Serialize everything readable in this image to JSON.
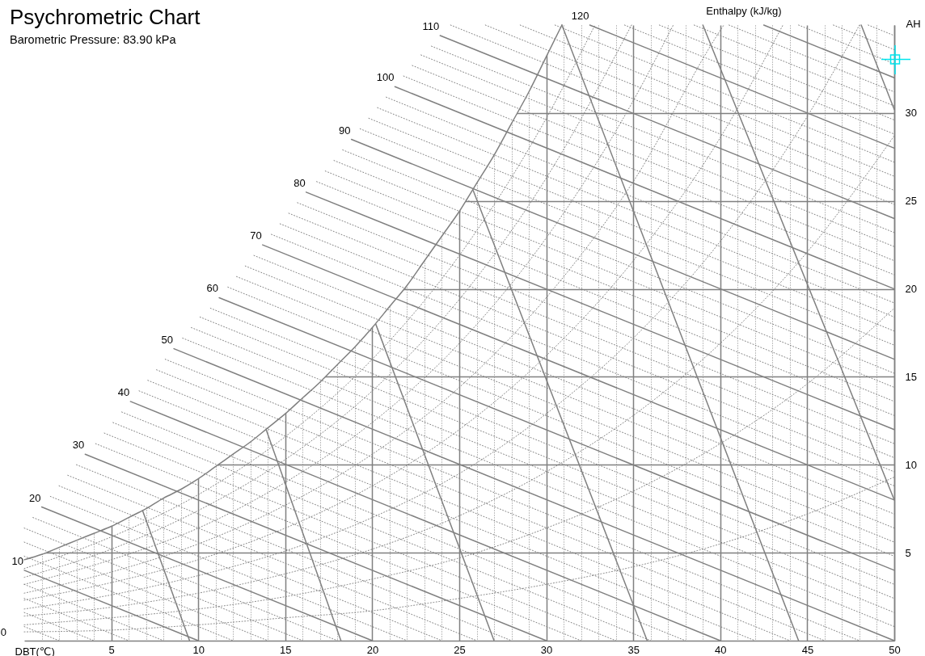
{
  "chart_data": {
    "type": "line",
    "title": "Psychrometric Chart",
    "subtitle": "Barometric Pressure: 83.90 kPa",
    "xlabel": "DBT(℃)",
    "ylabel": "AH",
    "annotations": [
      "Enthalpy (kJ/kg)",
      "0"
    ],
    "xlim": [
      0,
      50
    ],
    "ylim": [
      0,
      35
    ],
    "xticks": [
      {
        "value": 1,
        "label": null
      },
      {
        "value": 2,
        "label": null
      },
      {
        "value": 3,
        "label": null
      },
      {
        "value": 4,
        "label": null
      },
      5,
      {
        "value": 6,
        "label": null
      },
      {
        "value": 7,
        "label": null
      },
      {
        "value": 8,
        "label": null
      },
      {
        "value": 9,
        "label": null
      },
      10,
      {
        "value": 11,
        "label": null
      },
      {
        "value": 12,
        "label": null
      },
      {
        "value": 13,
        "label": null
      },
      {
        "value": 14,
        "label": null
      },
      15,
      {
        "value": 16,
        "label": null
      },
      {
        "value": 17,
        "label": null
      },
      {
        "value": 18,
        "label": null
      },
      {
        "value": 19,
        "label": null
      },
      20,
      {
        "value": 21,
        "label": null
      },
      {
        "value": 22,
        "label": null
      },
      {
        "value": 23,
        "label": null
      },
      {
        "value": 24,
        "label": null
      },
      25,
      {
        "value": 26,
        "label": null
      },
      {
        "value": 27,
        "label": null
      },
      {
        "value": 28,
        "label": null
      },
      {
        "value": 29,
        "label": null
      },
      30,
      {
        "value": 31,
        "label": null
      },
      {
        "value": 32,
        "label": null
      },
      {
        "value": 33,
        "label": null
      },
      {
        "value": 34,
        "label": null
      },
      35,
      {
        "value": 36,
        "label": null
      },
      {
        "value": 37,
        "label": null
      },
      {
        "value": 38,
        "label": null
      },
      {
        "value": 39,
        "label": null
      },
      40,
      {
        "value": 41,
        "label": null
      },
      {
        "value": 42,
        "label": null
      },
      {
        "value": 43,
        "label": null
      },
      {
        "value": 44,
        "label": null
      },
      45,
      {
        "value": 46,
        "label": null
      },
      {
        "value": 47,
        "label": null
      },
      {
        "value": 48,
        "label": null
      },
      {
        "value": 49,
        "label": null
      },
      50
    ],
    "yticks": [
      5,
      10,
      15,
      20,
      25,
      30
    ],
    "grid": true,
    "line_style": "solid",
    "series": [
      {
        "color": "#808080",
        "line_style": "dotted",
        "x": [
          0,
          2
        ],
        "values": [
          0.8,
          0
        ]
      },
      {
        "color": "#808080",
        "line_style": "dotted",
        "x": [
          0,
          4
        ],
        "values": [
          1.6,
          0
        ]
      },
      {
        "color": "#808080",
        "line_style": "dotted",
        "x": [
          0,
          6
        ],
        "values": [
          2.4,
          0
        ]
      },
      {
        "color": "#808080",
        "line_style": "dotted",
        "x": [
          0,
          8
        ],
        "values": [
          3.2,
          0
        ]
      },
      {
        "color": "#808080",
        "line_style": "dotted",
        "x": [
          0,
          12
        ],
        "values": [
          4.8,
          0
        ]
      },
      {
        "color": "#808080",
        "line_style": "dotted",
        "x": [
          0,
          14
        ],
        "values": [
          5.6,
          0
        ]
      },
      {
        "color": "#808080",
        "line_style": "dotted",
        "x": [
          0,
          16
        ],
        "values": [
          6.4,
          0
        ]
      },
      {
        "color": "#808080",
        "line_style": "dotted",
        "x": [
          0.5,
          18
        ],
        "values": [
          7.0,
          0
        ]
      },
      {
        "color": "#808080",
        "line_style": "dotted",
        "x": [
          1.5,
          22
        ],
        "values": [
          8.2,
          0
        ]
      },
      {
        "color": "#808080",
        "line_style": "dotted",
        "x": [
          2.0,
          24
        ],
        "values": [
          8.8,
          0
        ]
      },
      {
        "color": "#808080",
        "line_style": "dotted",
        "x": [
          2.5,
          26
        ],
        "values": [
          9.4,
          0
        ]
      },
      {
        "color": "#808080",
        "line_style": "dotted",
        "x": [
          3.0,
          28
        ],
        "values": [
          10.0,
          0
        ]
      },
      {
        "color": "#808080",
        "line_style": "dotted",
        "x": [
          4.1,
          32
        ],
        "values": [
          11.2,
          0
        ]
      },
      {
        "color": "#808080",
        "line_style": "dotted",
        "x": [
          4.6,
          34
        ],
        "values": [
          11.8,
          0
        ]
      },
      {
        "color": "#808080",
        "line_style": "dotted",
        "x": [
          5.1,
          36
        ],
        "values": [
          12.4,
          0
        ]
      },
      {
        "color": "#808080",
        "line_style": "dotted",
        "x": [
          5.6,
          38
        ],
        "values": [
          13.0,
          0
        ]
      },
      {
        "color": "#808080",
        "line_style": "dotted",
        "x": [
          6.6,
          42
        ],
        "values": [
          14.2,
          0
        ]
      },
      {
        "color": "#808080",
        "line_style": "dotted",
        "x": [
          7.1,
          44
        ],
        "values": [
          14.8,
          0
        ]
      },
      {
        "color": "#808080",
        "line_style": "dotted",
        "x": [
          7.6,
          46
        ],
        "values": [
          15.4,
          0
        ]
      },
      {
        "color": "#808080",
        "line_style": "dotted",
        "x": [
          8.1,
          48
        ],
        "values": [
          16.0,
          0
        ]
      },
      {
        "color": "#808080",
        "line_style": "dotted",
        "x": [
          9.1,
          50
        ],
        "values": [
          17.2,
          0.8
        ]
      },
      {
        "color": "#808080",
        "line_style": "dotted",
        "x": [
          9.6,
          50
        ],
        "values": [
          17.8,
          1.6
        ]
      },
      {
        "color": "#808080",
        "line_style": "dotted",
        "x": [
          10.1,
          50
        ],
        "values": [
          18.4,
          2.4
        ]
      },
      {
        "color": "#808080",
        "line_style": "dotted",
        "x": [
          10.7,
          50
        ],
        "values": [
          18.9,
          3.2
        ]
      },
      {
        "color": "#808080",
        "line_style": "dotted",
        "x": [
          11.7,
          50
        ],
        "values": [
          20.1,
          4.8
        ]
      },
      {
        "color": "#808080",
        "line_style": "dotted",
        "x": [
          12.2,
          50
        ],
        "values": [
          20.7,
          5.6
        ]
      },
      {
        "color": "#808080",
        "line_style": "dotted",
        "x": [
          12.7,
          50
        ],
        "values": [
          21.3,
          6.4
        ]
      },
      {
        "color": "#808080",
        "line_style": "dotted",
        "x": [
          13.2,
          50
        ],
        "values": [
          21.9,
          7.2
        ]
      },
      {
        "color": "#808080",
        "line_style": "dotted",
        "x": [
          14.2,
          50
        ],
        "values": [
          23.1,
          8.8
        ]
      },
      {
        "color": "#808080",
        "line_style": "dotted",
        "x": [
          14.7,
          50
        ],
        "values": [
          23.7,
          9.6
        ]
      },
      {
        "color": "#808080",
        "line_style": "dotted",
        "x": [
          15.2,
          50
        ],
        "values": [
          24.3,
          10.4
        ]
      },
      {
        "color": "#808080",
        "line_style": "dotted",
        "x": [
          15.7,
          50
        ],
        "values": [
          24.9,
          11.2
        ]
      },
      {
        "color": "#808080",
        "line_style": "dotted",
        "x": [
          16.8,
          50
        ],
        "values": [
          26.1,
          12.8
        ]
      },
      {
        "color": "#808080",
        "line_style": "dotted",
        "x": [
          17.3,
          50
        ],
        "values": [
          26.7,
          13.6
        ]
      },
      {
        "color": "#808080",
        "line_style": "dotted",
        "x": [
          17.8,
          50
        ],
        "values": [
          27.3,
          14.4
        ]
      },
      {
        "color": "#808080",
        "line_style": "dotted",
        "x": [
          18.3,
          50
        ],
        "values": [
          27.9,
          15.2
        ]
      },
      {
        "color": "#808080",
        "line_style": "dotted",
        "x": [
          19.3,
          50
        ],
        "values": [
          29.1,
          16.8
        ]
      },
      {
        "color": "#808080",
        "line_style": "dotted",
        "x": [
          19.8,
          50
        ],
        "values": [
          29.7,
          17.6
        ]
      },
      {
        "color": "#808080",
        "line_style": "dotted",
        "x": [
          20.3,
          50
        ],
        "values": [
          30.3,
          18.4
        ]
      },
      {
        "color": "#808080",
        "line_style": "dotted",
        "x": [
          20.8,
          50
        ],
        "values": [
          30.9,
          19.2
        ]
      },
      {
        "color": "#808080",
        "line_style": "dotted",
        "x": [
          21.8,
          50
        ],
        "values": [
          32.1,
          20.8
        ]
      },
      {
        "color": "#808080",
        "line_style": "dotted",
        "x": [
          22.3,
          50
        ],
        "values": [
          32.7,
          21.6
        ]
      },
      {
        "color": "#808080",
        "line_style": "dotted",
        "x": [
          22.8,
          50
        ],
        "values": [
          33.3,
          22.4
        ]
      },
      {
        "color": "#808080",
        "line_style": "dotted",
        "x": [
          23.4,
          50
        ],
        "values": [
          33.8,
          23.2
        ]
      },
      {
        "color": "#808080",
        "line_style": "dotted",
        "x": [
          24.5,
          50
        ],
        "values": [
          35,
          24.8
        ]
      },
      {
        "color": "#808080",
        "line_style": "dotted",
        "x": [
          26.5,
          50
        ],
        "values": [
          35,
          25.6
        ]
      },
      {
        "color": "#808080",
        "line_style": "dotted",
        "x": [
          28.5,
          50
        ],
        "values": [
          35,
          26.4
        ]
      },
      {
        "color": "#808080",
        "line_style": "dotted",
        "x": [
          30.5,
          50
        ],
        "values": [
          35,
          27.2
        ]
      },
      {
        "color": "#808080",
        "line_style": "dotted",
        "x": [
          34.5,
          50
        ],
        "values": [
          35,
          28.8
        ]
      },
      {
        "color": "#808080",
        "line_style": "dotted",
        "x": [
          36.5,
          50
        ],
        "values": [
          35,
          29.6
        ]
      },
      {
        "color": "#808080",
        "line_style": "dotted",
        "x": [
          38.5,
          50
        ],
        "values": [
          35,
          30.4
        ]
      },
      {
        "color": "#808080",
        "line_style": "dotted",
        "x": [
          40.5,
          50
        ],
        "values": [
          35,
          31.2
        ]
      },
      {
        "color": "#808080",
        "line_style": "dotted",
        "x": [
          44.5,
          50
        ],
        "values": [
          35,
          32.8
        ]
      },
      {
        "color": "#808080",
        "line_style": "dotted",
        "x": [
          46.5,
          50
        ],
        "values": [
          35,
          33.6
        ]
      },
      {
        "color": "#808080",
        "line_style": "dotted",
        "x": [
          48.5,
          50
        ],
        "values": [
          35,
          34.4
        ]
      },
      {
        "color": "#808080",
        "line_style": "dotted",
        "x": [
          0,
          5,
          10,
          15,
          20,
          25,
          30,
          32.8
        ],
        "values": [
          4.1,
          5.9,
          8.3,
          11.6,
          16.0,
          21.9,
          29.7,
          35
        ]
      },
      {
        "color": "#808080",
        "line_style": "dotted",
        "x": [
          0,
          5,
          10,
          15,
          20,
          25,
          30,
          34.9
        ],
        "values": [
          3.6,
          5.2,
          7.4,
          10.3,
          14.2,
          19.4,
          26.3,
          35
        ]
      },
      {
        "color": "#808080",
        "line_style": "dotted",
        "x": [
          0,
          5,
          10,
          15,
          20,
          25,
          30,
          35,
          37.3
        ],
        "values": [
          3.2,
          4.6,
          6.4,
          9.0,
          12.4,
          16.9,
          22.9,
          30.7,
          35
        ]
      },
      {
        "color": "#808080",
        "line_style": "dotted",
        "x": [
          0,
          5,
          10,
          15,
          20,
          25,
          30,
          35,
          40,
          40.2
        ],
        "values": [
          2.7,
          3.9,
          5.5,
          7.7,
          10.6,
          14.4,
          19.5,
          26.1,
          34.7,
          35
        ]
      },
      {
        "color": "#808080",
        "line_style": "dotted",
        "x": [
          0,
          5,
          10,
          15,
          20,
          25,
          30,
          35,
          40,
          43.6
        ],
        "values": [
          2.3,
          3.3,
          4.6,
          6.4,
          8.8,
          12.0,
          16.2,
          21.6,
          28.6,
          35
        ]
      },
      {
        "color": "#808080",
        "line_style": "dotted",
        "x": [
          0,
          5,
          10,
          15,
          20,
          25,
          30,
          35,
          40,
          45,
          48.0
        ],
        "values": [
          1.8,
          2.6,
          3.7,
          5.1,
          7.0,
          9.5,
          12.9,
          17.2,
          22.7,
          29.8,
          35
        ]
      },
      {
        "color": "#808080",
        "line_style": "dotted",
        "x": [
          0,
          5,
          10,
          15,
          20,
          25,
          30,
          35,
          40,
          45,
          50
        ],
        "values": [
          1.4,
          1.9,
          2.7,
          3.8,
          5.2,
          7.1,
          9.6,
          12.8,
          16.9,
          22.1,
          28.7
        ]
      },
      {
        "color": "#808080",
        "line_style": "dotted",
        "x": [
          0,
          5,
          10,
          15,
          20,
          25,
          30,
          35,
          40,
          45,
          50
        ],
        "values": [
          0.9,
          1.3,
          1.8,
          2.5,
          3.5,
          4.7,
          6.4,
          8.5,
          11.2,
          14.6,
          18.9
        ]
      },
      {
        "color": "#808080",
        "line_style": "dotted",
        "x": [
          0,
          5,
          10,
          15,
          20,
          25,
          30,
          35,
          40,
          45,
          50
        ],
        "values": [
          0.5,
          0.6,
          0.9,
          1.3,
          1.7,
          2.4,
          3.2,
          4.2,
          5.5,
          7.2,
          9.3
        ]
      },
      {
        "color": "#808080",
        "x": [
          6.8,
          9.5
        ],
        "values": [
          7.4,
          0
        ]
      },
      {
        "color": "#808080",
        "x": [
          13.9,
          18.2
        ],
        "values": [
          12.0,
          0
        ]
      },
      {
        "color": "#808080",
        "x": [
          20.2,
          27.0
        ],
        "values": [
          18.0,
          0
        ]
      },
      {
        "color": "#808080",
        "x": [
          25.8,
          35.8
        ],
        "values": [
          25.6,
          0
        ]
      },
      {
        "color": "#808080",
        "x": [
          30.9,
          44.5
        ],
        "values": [
          35,
          0
        ]
      },
      {
        "color": "#808080",
        "x": [
          39.0,
          50
        ],
        "values": [
          35,
          8.0
        ]
      },
      {
        "color": "#808080",
        "x": [
          48.1,
          50
        ],
        "values": [
          35,
          30.2
        ]
      },
      {
        "name": "10",
        "color": "#808080",
        "x": [
          0,
          10
        ],
        "values": [
          4.0,
          0
        ]
      },
      {
        "name": "20",
        "color": "#808080",
        "x": [
          1.0,
          20
        ],
        "values": [
          7.6,
          0
        ]
      },
      {
        "name": "30",
        "color": "#808080",
        "x": [
          3.5,
          30
        ],
        "values": [
          10.6,
          0
        ]
      },
      {
        "name": "40",
        "color": "#808080",
        "x": [
          6.1,
          40
        ],
        "values": [
          13.6,
          0
        ]
      },
      {
        "name": "50",
        "color": "#808080",
        "x": [
          8.6,
          50
        ],
        "values": [
          16.6,
          0
        ]
      },
      {
        "name": "60",
        "color": "#808080",
        "x": [
          11.2,
          50
        ],
        "values": [
          19.5,
          4.0
        ]
      },
      {
        "name": "70",
        "color": "#808080",
        "x": [
          13.7,
          50
        ],
        "values": [
          22.5,
          8.0
        ]
      },
      {
        "name": "80",
        "color": "#808080",
        "x": [
          16.2,
          50
        ],
        "values": [
          25.5,
          12.0
        ]
      },
      {
        "name": "90",
        "color": "#808080",
        "x": [
          18.8,
          50
        ],
        "values": [
          28.5,
          16.0
        ]
      },
      {
        "name": "100",
        "color": "#808080",
        "x": [
          21.3,
          50
        ],
        "values": [
          31.5,
          20.0
        ]
      },
      {
        "name": "110",
        "color": "#808080",
        "x": [
          23.9,
          50
        ],
        "values": [
          34.4,
          24.0
        ]
      },
      {
        "name": "120",
        "color": "#808080",
        "x": [
          32.5,
          50
        ],
        "values": [
          35,
          28.0
        ]
      },
      {
        "color": "#808080",
        "x": [
          42.5,
          50
        ],
        "values": [
          35,
          32.0
        ]
      },
      {
        "color": "#808080",
        "x": [
          0,
          1,
          2,
          3,
          4,
          5,
          6,
          7,
          8,
          9,
          10,
          11,
          12,
          13,
          14,
          15,
          16,
          17,
          18,
          19,
          20,
          21,
          22,
          23,
          24,
          25,
          26,
          27,
          28,
          29,
          30,
          30.9
        ],
        "values": [
          4.6,
          4.9,
          5.3,
          5.7,
          6.1,
          6.5,
          7.0,
          7.5,
          8.1,
          8.6,
          9.2,
          9.9,
          10.6,
          11.3,
          12.1,
          12.9,
          13.8,
          14.7,
          15.7,
          16.7,
          17.8,
          19.0,
          20.2,
          21.6,
          23.0,
          24.4,
          26.0,
          27.6,
          29.4,
          31.2,
          33.2,
          35
        ]
      }
    ]
  }
}
